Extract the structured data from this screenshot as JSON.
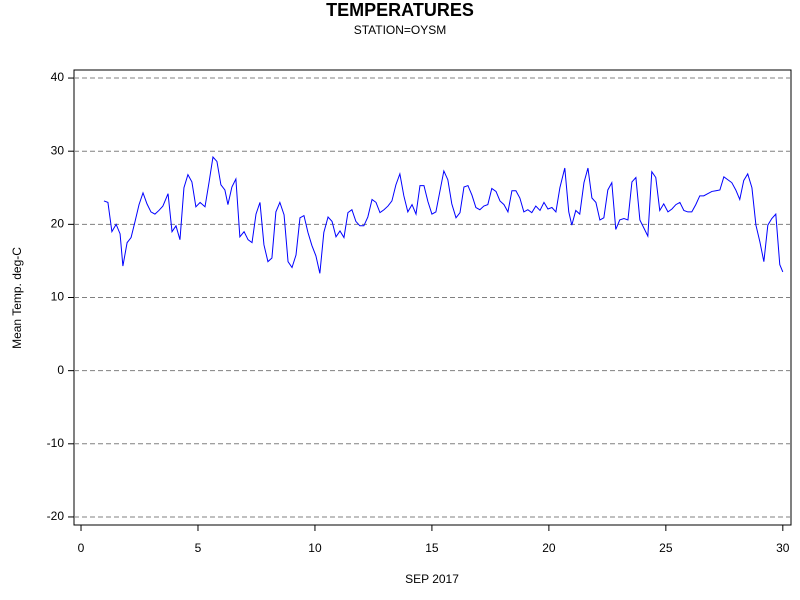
{
  "chart_data": {
    "type": "line",
    "title": "TEMPERATURES",
    "subtitle": "STATION=OYSM",
    "ylabel": "Mean Temp. deg-C",
    "xlabel": "SEP 2017",
    "color": "#0000ff",
    "grid": true,
    "xlim": [
      -0.3,
      30.35
    ],
    "ylim": [
      -21.1,
      41.1
    ],
    "xticks": [
      0,
      5,
      10,
      15,
      20,
      25,
      30
    ],
    "yticks": [
      -20,
      -10,
      0,
      10,
      20,
      30,
      40
    ],
    "x": [
      0.98,
      1.15,
      1.32,
      1.5,
      1.67,
      1.79,
      1.97,
      2.14,
      2.31,
      2.48,
      2.65,
      2.82,
      2.99,
      3.16,
      3.33,
      3.5,
      3.72,
      3.89,
      4.06,
      4.23,
      4.4,
      4.57,
      4.74,
      4.91,
      5.09,
      5.3,
      5.47,
      5.64,
      5.81,
      5.98,
      6.15,
      6.28,
      6.45,
      6.62,
      6.79,
      6.97,
      7.14,
      7.31,
      7.48,
      7.65,
      7.82,
      7.99,
      8.16,
      8.33,
      8.5,
      8.68,
      8.85,
      9.02,
      9.19,
      9.36,
      9.53,
      9.7,
      9.87,
      10.04,
      10.21,
      10.38,
      10.56,
      10.73,
      10.9,
      11.07,
      11.24,
      11.41,
      11.58,
      11.75,
      11.92,
      12.09,
      12.26,
      12.44,
      12.61,
      12.78,
      12.95,
      13.12,
      13.29,
      13.46,
      13.63,
      13.8,
      13.97,
      14.15,
      14.32,
      14.49,
      14.66,
      14.83,
      15.0,
      15.17,
      15.34,
      15.51,
      15.68,
      15.85,
      16.03,
      16.2,
      16.37,
      16.54,
      16.71,
      16.88,
      17.05,
      17.22,
      17.39,
      17.56,
      17.74,
      17.91,
      18.08,
      18.25,
      18.42,
      18.59,
      18.76,
      18.93,
      19.1,
      19.27,
      19.44,
      19.62,
      19.79,
      19.96,
      20.13,
      20.3,
      20.47,
      20.68,
      20.85,
      20.98,
      21.15,
      21.32,
      21.5,
      21.67,
      21.84,
      22.01,
      22.18,
      22.35,
      22.52,
      22.69,
      22.86,
      23.03,
      23.21,
      23.38,
      23.55,
      23.72,
      23.89,
      24.06,
      24.23,
      24.4,
      24.57,
      24.74,
      24.91,
      25.09,
      25.26,
      25.43,
      25.6,
      25.77,
      25.94,
      26.11,
      26.28,
      26.45,
      26.62,
      26.79,
      26.97,
      27.14,
      27.31,
      27.48,
      27.65,
      27.82,
      27.99,
      28.16,
      28.33,
      28.5,
      28.68,
      28.85,
      29.02,
      29.19,
      29.36,
      29.53,
      29.7,
      29.87,
      30.0
    ],
    "values": [
      23.2,
      23,
      19,
      20,
      18.7,
      14.3,
      17.5,
      18.2,
      20.4,
      22.7,
      24.3,
      22.8,
      21.7,
      21.4,
      21.9,
      22.5,
      24.2,
      19,
      19.8,
      17.9,
      25,
      26.8,
      25.8,
      22.4,
      23,
      22.4,
      25.7,
      29.2,
      28.6,
      25.4,
      24.7,
      22.7,
      25.1,
      26.2,
      18.3,
      19,
      17.9,
      17.5,
      21.4,
      23,
      17.2,
      14.9,
      15.4,
      21.7,
      23,
      21.3,
      14.9,
      14.1,
      15.8,
      20.9,
      21.2,
      18.9,
      17.1,
      15.7,
      13.3,
      18.9,
      21,
      20.4,
      18.3,
      19.1,
      18.2,
      21.6,
      22,
      20.4,
      19.8,
      19.8,
      21,
      23.4,
      23,
      21.6,
      22,
      22.5,
      23.2,
      25.4,
      26.9,
      23.9,
      21.7,
      22.7,
      21.4,
      25.3,
      25.3,
      23.1,
      21.4,
      21.7,
      24.5,
      27.3,
      26.1,
      22.8,
      20.9,
      21.6,
      25.1,
      25.3,
      24,
      22.3,
      22,
      22.5,
      22.7,
      24.9,
      24.5,
      23.2,
      22.7,
      21.7,
      24.6,
      24.6,
      23.6,
      21.7,
      22,
      21.6,
      22.5,
      21.9,
      23,
      22.1,
      22.3,
      21.7,
      25,
      27.7,
      21.7,
      19.9,
      21.9,
      21.4,
      25.7,
      27.7,
      23.6,
      23,
      20.6,
      20.9,
      24.7,
      25.7,
      19.3,
      20.6,
      20.8,
      20.6,
      25.8,
      26.4,
      20.6,
      19.5,
      18.4,
      27.2,
      26.4,
      21.9,
      22.8,
      21.7,
      22.1,
      22.7,
      23,
      21.9,
      21.7,
      21.7,
      22.7,
      23.9,
      23.9,
      24.2,
      24.5,
      24.6,
      24.7,
      26.5,
      26.1,
      25.7,
      24.7,
      23.4,
      26,
      26.9,
      25,
      19.9,
      17.6,
      14.9,
      19.9,
      20.8,
      21.4,
      14.5,
      13.5
    ]
  }
}
